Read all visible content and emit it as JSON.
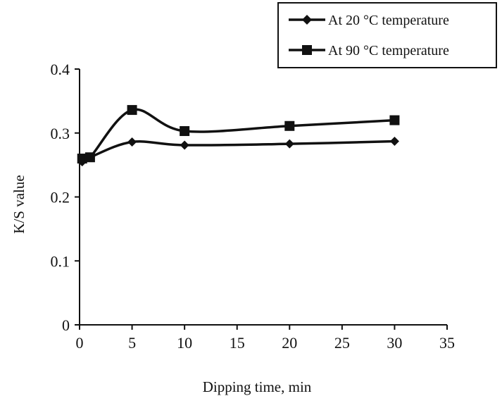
{
  "chart_data": {
    "type": "line",
    "title": "",
    "xlabel": "Dipping time, min",
    "ylabel": "K/S value",
    "xlim": [
      0,
      35
    ],
    "ylim": [
      0,
      0.4
    ],
    "xticks": [
      "0",
      "5",
      "10",
      "15",
      "20",
      "25",
      "30",
      "35"
    ],
    "yticks": [
      "0",
      "0.1",
      "0.2",
      "0.3",
      "0.4"
    ],
    "grid": false,
    "legend_position": "top-right",
    "series": [
      {
        "name": "At 20 °C temperature",
        "marker": "diamond",
        "color": "#111111",
        "points": [
          [
            0.25,
            0.255
          ],
          [
            1,
            0.262
          ],
          [
            5,
            0.286
          ],
          [
            10,
            0.281
          ],
          [
            20,
            0.283
          ],
          [
            30,
            0.287
          ]
        ]
      },
      {
        "name": "At 90 °C temperature",
        "marker": "square",
        "color": "#111111",
        "points": [
          [
            0.25,
            0.26
          ],
          [
            1,
            0.262
          ],
          [
            5,
            0.336
          ],
          [
            10,
            0.303
          ],
          [
            20,
            0.311
          ],
          [
            30,
            0.32
          ]
        ]
      }
    ]
  }
}
